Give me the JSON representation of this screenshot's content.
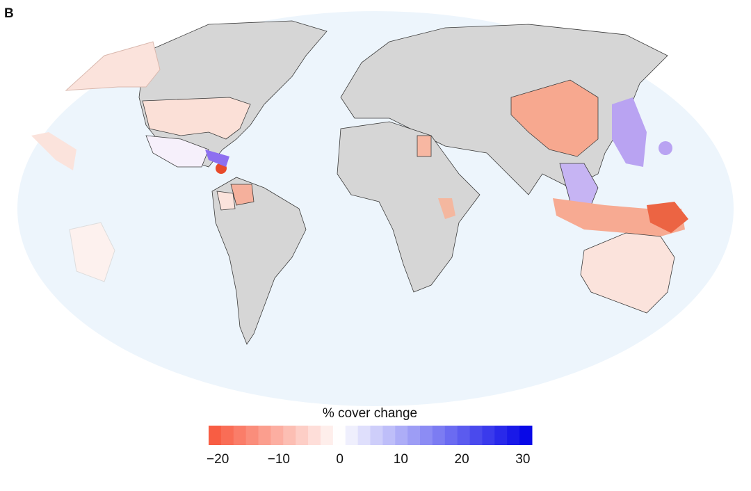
{
  "panel_label": "B",
  "colorbar": {
    "label": "% cover change",
    "lim": [
      -21.5,
      31.5
    ],
    "ticks": [
      {
        "value": -20,
        "label": "−20"
      },
      {
        "value": -10,
        "label": "−10"
      },
      0,
      10,
      20,
      30
    ],
    "colors": [
      "#f8553a",
      "#ffffff",
      "#0000e6"
    ]
  }
}
